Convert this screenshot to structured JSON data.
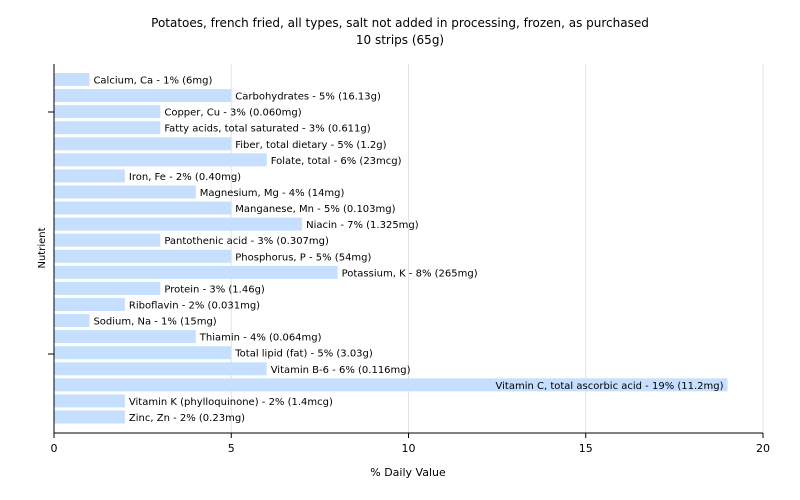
{
  "chart_data": {
    "type": "bar",
    "orientation": "horizontal",
    "title": "Potatoes, french fried, all types, salt not added in processing, frozen, as purchased",
    "subtitle": "10 strips (65g)",
    "xlabel": "% Daily Value",
    "ylabel": "Nutrient",
    "xlim": [
      0,
      20
    ],
    "xticks": [
      "0",
      "5",
      "10",
      "15",
      "20"
    ],
    "grid": "vertical",
    "legend": "none",
    "bar_color": "#c6dfff",
    "categories": [
      "Calcium, Ca",
      "Carbohydrates",
      "Copper, Cu",
      "Fatty acids, total saturated",
      "Fiber, total dietary",
      "Folate, total",
      "Iron, Fe",
      "Magnesium, Mg",
      "Manganese, Mn",
      "Niacin",
      "Pantothenic acid",
      "Phosphorus, P",
      "Potassium, K",
      "Protein",
      "Riboflavin",
      "Sodium, Na",
      "Thiamin",
      "Total lipid (fat)",
      "Vitamin B-6",
      "Vitamin C, total ascorbic acid",
      "Vitamin K (phylloquinone)",
      "Zinc, Zn"
    ],
    "values": [
      1,
      5,
      3,
      3,
      5,
      6,
      2,
      4,
      5,
      7,
      3,
      5,
      8,
      3,
      2,
      1,
      4,
      5,
      6,
      19,
      2,
      2
    ],
    "labels": [
      "Calcium, Ca - 1% (6mg)",
      "Carbohydrates - 5% (16.13g)",
      "Copper, Cu - 3% (0.060mg)",
      "Fatty acids, total saturated - 3% (0.611g)",
      "Fiber, total dietary - 5% (1.2g)",
      "Folate, total - 6% (23mcg)",
      "Iron, Fe - 2% (0.40mg)",
      "Magnesium, Mg - 4% (14mg)",
      "Manganese, Mn - 5% (0.103mg)",
      "Niacin - 7% (1.325mg)",
      "Pantothenic acid - 3% (0.307mg)",
      "Phosphorus, P - 5% (54mg)",
      "Potassium, K - 8% (265mg)",
      "Protein - 3% (1.46g)",
      "Riboflavin - 2% (0.031mg)",
      "Sodium, Na - 1% (15mg)",
      "Thiamin - 4% (0.064mg)",
      "Total lipid (fat) - 5% (3.03g)",
      "Vitamin B-6 - 6% (0.116mg)",
      "Vitamin C, total ascorbic acid - 19% (11.2mg)",
      "Vitamin K (phylloquinone) - 2% (1.4mcg)",
      "Zinc, Zn - 2% (0.23mg)"
    ]
  }
}
